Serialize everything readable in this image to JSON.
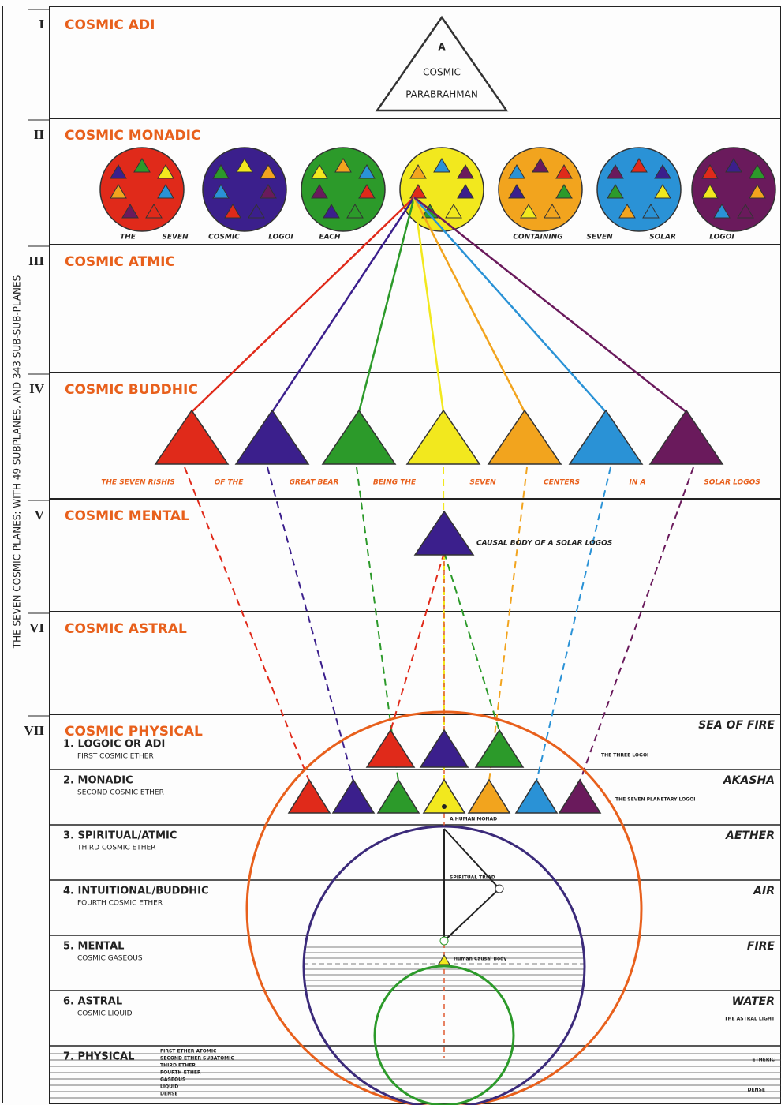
{
  "side_title": "THE SEVEN COSMIC PLANES; WITH 49 SUBPLANES, AND 343 SUB-SUB-PLANES",
  "planes": [
    {
      "numeral": "I",
      "title": "COSMIC ADI"
    },
    {
      "numeral": "II",
      "title": "COSMIC MONADIC"
    },
    {
      "numeral": "III",
      "title": "COSMIC ATMIC"
    },
    {
      "numeral": "IV",
      "title": "COSMIC BUDDHIC"
    },
    {
      "numeral": "V",
      "title": "COSMIC MENTAL"
    },
    {
      "numeral": "VI",
      "title": "COSMIC ASTRAL"
    },
    {
      "numeral": "VII",
      "title": "COSMIC PHYSICAL"
    }
  ],
  "adi_triangle": [
    "A",
    "COSMIC",
    "PARABRAHMAN"
  ],
  "monadic_caption": [
    "THE",
    "SEVEN",
    "COSMIC",
    "LOGOI",
    "EACH",
    "CONTAINING",
    "SEVEN",
    "SOLAR",
    "LOGOI"
  ],
  "buddhic_caption": [
    "THE SEVEN RISHIS",
    "OF THE",
    "GREAT BEAR",
    "BEING THE",
    "SEVEN",
    "CENTERS",
    "IN A",
    "SOLAR LOGOS"
  ],
  "mental_caption": "CAUSAL BODY OF A SOLAR LOGOS",
  "subplanes": [
    {
      "title": "1. LOGOIC OR ADI",
      "subtitle": "FIRST COSMIC ETHER",
      "element": "SEA OF FIRE",
      "note": "THE THREE LOGOI"
    },
    {
      "title": "2. MONADIC",
      "subtitle": "SECOND COSMIC ETHER",
      "element": "AKASHA",
      "note": "THE SEVEN PLANETARY LOGOI"
    },
    {
      "title": "3. SPIRITUAL/ATMIC",
      "subtitle": "THIRD COSMIC ETHER",
      "element": "AETHER"
    },
    {
      "title": "4. INTUITIONAL/BUDDHIC",
      "subtitle": "FOURTH COSMIC ETHER",
      "element": "AIR"
    },
    {
      "title": "5. MENTAL",
      "subtitle": "COSMIC GASEOUS",
      "element": "FIRE"
    },
    {
      "title": "6. ASTRAL",
      "subtitle": "COSMIC LIQUID",
      "element": "WATER",
      "note": "THE ASTRAL LIGHT"
    },
    {
      "title": "7. PHYSICAL",
      "element": "ETHERIC",
      "note": "DENSE"
    }
  ],
  "physical_layers": [
    "FIRST ETHER ATOMIC",
    "SECOND ETHER SUBATOMIC",
    "THIRD ETHER",
    "FOURTH ETHER",
    "GASEOUS",
    "LIQUID",
    "DENSE"
  ],
  "labels": {
    "human_monad": "A HUMAN MONAD",
    "spiritual_triad": "SPIRITUAL TRIAD",
    "causal_body": "Human Causal Body"
  }
}
